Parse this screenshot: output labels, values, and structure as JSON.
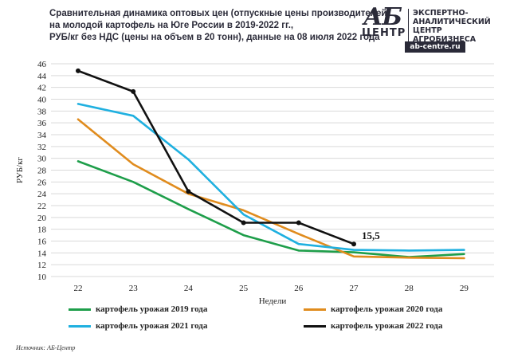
{
  "title_lines": [
    "Сравнительная динамика оптовых цен (отпускные цены производителей)",
    "на молодой картофель на Юге России в 2019-2022 гг.,",
    "РУБ/кг без НДС (цены на объем в 20 тонн), данные на 08 июля 2022 года"
  ],
  "logo": {
    "ab": "АБ",
    "centr": "ЦЕНТР",
    "lines": [
      "ЭКСПЕРТНО-",
      "АНАЛИТИЧЕСКИЙ",
      "ЦЕНТР",
      "АГРОБИЗНЕСА"
    ],
    "url": "ab-centre.ru"
  },
  "source": "Источник: АБ-Центр",
  "chart_data": {
    "type": "line",
    "x": [
      22,
      23,
      24,
      25,
      26,
      27,
      28,
      29
    ],
    "xlabel": "Недели",
    "ylabel": "РУБ/кг",
    "ylim": [
      10,
      46
    ],
    "yticks": [
      10,
      12,
      14,
      16,
      18,
      20,
      22,
      24,
      26,
      28,
      30,
      32,
      34,
      36,
      38,
      40,
      42,
      44,
      46
    ],
    "grid": "horizontal",
    "legend_position": "bottom",
    "series": [
      {
        "name": "картофель урожая 2019 года",
        "color": "#1e9e4a",
        "values": [
          29.5,
          26.0,
          21.4,
          17.0,
          14.4,
          14.1,
          13.3,
          13.8
        ],
        "markers": false
      },
      {
        "name": "картофель урожая 2020 года",
        "color": "#e08c1e",
        "values": [
          36.6,
          29.0,
          24.0,
          21.2,
          17.2,
          13.4,
          13.2,
          13.1
        ],
        "markers": false
      },
      {
        "name": "картофель урожая 2021 года",
        "color": "#1fb0e0",
        "values": [
          39.2,
          37.2,
          29.8,
          20.5,
          15.5,
          14.5,
          14.4,
          14.5
        ],
        "markers": false
      },
      {
        "name": "картофель урожая 2022 года",
        "color": "#111111",
        "values": [
          44.8,
          41.3,
          24.4,
          19.1,
          19.1,
          15.5,
          null,
          null
        ],
        "markers": true
      }
    ],
    "annotations": [
      {
        "series": 3,
        "x": 27,
        "text": "15,5"
      }
    ]
  }
}
